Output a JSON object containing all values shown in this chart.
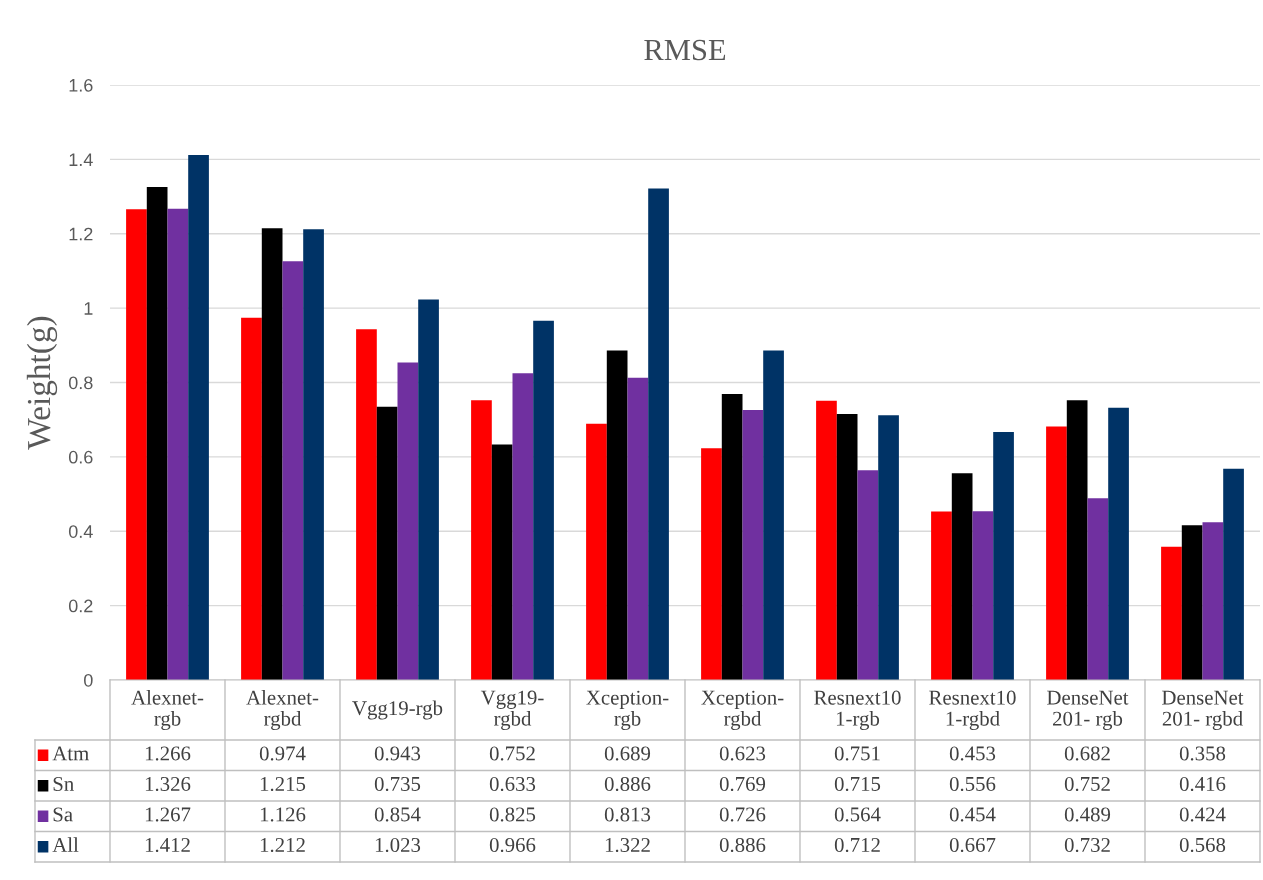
{
  "chart_data": {
    "type": "bar",
    "title": "RMSE",
    "ylabel": "Weight(g)",
    "categories": [
      "Alexnet-rgb",
      "Alexnet-rgbd",
      "Vgg19-rgb",
      "Vgg19-rgbd",
      "Xception-rgb",
      "Xception-rgbd",
      "Resnext101-rgb",
      "Resnext101-rgbd",
      "DenseNet201- rgb",
      "DenseNet201- rgbd"
    ],
    "series": [
      {
        "name": "Atm",
        "color": "#ff0000",
        "values": [
          1.266,
          0.974,
          0.943,
          0.752,
          0.689,
          0.623,
          0.751,
          0.453,
          0.682,
          0.358
        ]
      },
      {
        "name": "Sn",
        "color": "#000000",
        "values": [
          1.326,
          1.215,
          0.735,
          0.633,
          0.886,
          0.769,
          0.715,
          0.556,
          0.752,
          0.416
        ]
      },
      {
        "name": "Sa",
        "color": "#7030a0",
        "values": [
          1.267,
          1.126,
          0.854,
          0.825,
          0.813,
          0.726,
          0.564,
          0.454,
          0.489,
          0.424
        ]
      },
      {
        "name": "All",
        "color": "#003366",
        "values": [
          1.412,
          1.212,
          1.023,
          0.966,
          1.322,
          0.886,
          0.712,
          0.667,
          0.732,
          0.568
        ]
      }
    ],
    "ylim": [
      0,
      1.6
    ],
    "yticks": [
      0,
      0.2,
      0.4,
      0.6,
      0.8,
      1,
      1.2,
      1.4,
      1.6
    ],
    "grid": "y",
    "legend": "bottom",
    "data_labels": true
  }
}
